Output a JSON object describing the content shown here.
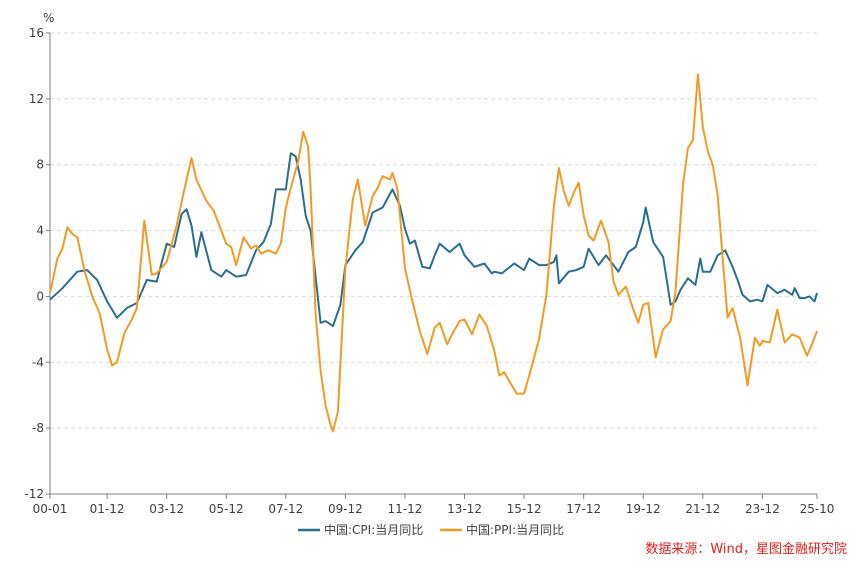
{
  "chart_data": {
    "type": "line",
    "y_unit": "%",
    "ylim": [
      -12,
      16
    ],
    "y_ticks": [
      -12,
      -8,
      -4,
      0,
      4,
      8,
      12,
      16
    ],
    "x_ticks": [
      "00-01",
      "01-12",
      "03-12",
      "05-12",
      "07-12",
      "09-12",
      "11-12",
      "13-12",
      "15-12",
      "17-12",
      "19-12",
      "21-12",
      "23-12",
      "25-10"
    ],
    "grid": "horizontal dashed",
    "legend_position": "bottom-center",
    "source": "数据来源：Wind，星图金融研究院",
    "series": [
      {
        "name": "中国:CPI:当月同比",
        "color": "#2a6f8e",
        "points": [
          [
            "00-01",
            -0.2
          ],
          [
            "00-06",
            0.5
          ],
          [
            "00-12",
            1.5
          ],
          [
            "01-04",
            1.6
          ],
          [
            "01-08",
            1.0
          ],
          [
            "01-12",
            -0.3
          ],
          [
            "02-04",
            -1.3
          ],
          [
            "02-08",
            -0.7
          ],
          [
            "02-12",
            -0.4
          ],
          [
            "03-04",
            1.0
          ],
          [
            "03-08",
            0.9
          ],
          [
            "03-12",
            3.2
          ],
          [
            "04-03",
            3.0
          ],
          [
            "04-06",
            5.0
          ],
          [
            "04-08",
            5.3
          ],
          [
            "04-10",
            4.3
          ],
          [
            "04-12",
            2.4
          ],
          [
            "05-02",
            3.9
          ],
          [
            "05-06",
            1.6
          ],
          [
            "05-10",
            1.2
          ],
          [
            "05-12",
            1.6
          ],
          [
            "06-04",
            1.2
          ],
          [
            "06-08",
            1.3
          ],
          [
            "06-12",
            2.8
          ],
          [
            "07-03",
            3.3
          ],
          [
            "07-06",
            4.4
          ],
          [
            "07-08",
            6.5
          ],
          [
            "07-12",
            6.5
          ],
          [
            "08-02",
            8.7
          ],
          [
            "08-04",
            8.5
          ],
          [
            "08-06",
            7.1
          ],
          [
            "08-08",
            4.9
          ],
          [
            "08-10",
            4.0
          ],
          [
            "08-12",
            1.2
          ],
          [
            "09-02",
            -1.6
          ],
          [
            "09-04",
            -1.5
          ],
          [
            "09-07",
            -1.8
          ],
          [
            "09-10",
            -0.5
          ],
          [
            "09-12",
            1.9
          ],
          [
            "10-04",
            2.8
          ],
          [
            "10-07",
            3.3
          ],
          [
            "10-11",
            5.1
          ],
          [
            "11-03",
            5.4
          ],
          [
            "11-07",
            6.5
          ],
          [
            "11-10",
            5.5
          ],
          [
            "11-12",
            4.1
          ],
          [
            "12-02",
            3.2
          ],
          [
            "12-04",
            3.4
          ],
          [
            "12-07",
            1.8
          ],
          [
            "12-10",
            1.7
          ],
          [
            "12-12",
            2.5
          ],
          [
            "13-02",
            3.2
          ],
          [
            "13-06",
            2.7
          ],
          [
            "13-10",
            3.2
          ],
          [
            "13-12",
            2.5
          ],
          [
            "14-04",
            1.8
          ],
          [
            "14-08",
            2.0
          ],
          [
            "14-11",
            1.4
          ],
          [
            "14-12",
            1.5
          ],
          [
            "15-03",
            1.4
          ],
          [
            "15-08",
            2.0
          ],
          [
            "15-12",
            1.6
          ],
          [
            "16-02",
            2.3
          ],
          [
            "16-06",
            1.9
          ],
          [
            "16-09",
            1.9
          ],
          [
            "16-12",
            2.1
          ],
          [
            "17-01",
            2.5
          ],
          [
            "17-02",
            0.8
          ],
          [
            "17-06",
            1.5
          ],
          [
            "17-09",
            1.6
          ],
          [
            "17-12",
            1.8
          ],
          [
            "18-02",
            2.9
          ],
          [
            "18-06",
            1.9
          ],
          [
            "18-09",
            2.5
          ],
          [
            "18-12",
            1.9
          ],
          [
            "19-02",
            1.5
          ],
          [
            "19-06",
            2.7
          ],
          [
            "19-09",
            3.0
          ],
          [
            "19-12",
            4.5
          ],
          [
            "20-01",
            5.4
          ],
          [
            "20-04",
            3.3
          ],
          [
            "20-08",
            2.4
          ],
          [
            "20-11",
            -0.5
          ],
          [
            "21-01",
            -0.3
          ],
          [
            "21-03",
            0.4
          ],
          [
            "21-06",
            1.1
          ],
          [
            "21-09",
            0.7
          ],
          [
            "21-11",
            2.3
          ],
          [
            "21-12",
            1.5
          ],
          [
            "22-03",
            1.5
          ],
          [
            "22-06",
            2.5
          ],
          [
            "22-09",
            2.8
          ],
          [
            "22-12",
            1.8
          ],
          [
            "23-02",
            1.0
          ],
          [
            "23-04",
            0.1
          ],
          [
            "23-07",
            -0.3
          ],
          [
            "23-10",
            -0.2
          ],
          [
            "23-12",
            -0.3
          ],
          [
            "24-02",
            0.7
          ],
          [
            "24-06",
            0.2
          ],
          [
            "24-09",
            0.4
          ],
          [
            "24-12",
            0.1
          ],
          [
            "25-01",
            0.5
          ],
          [
            "25-03",
            -0.1
          ],
          [
            "25-05",
            -0.1
          ],
          [
            "25-07",
            0.0
          ],
          [
            "25-09",
            -0.3
          ],
          [
            "25-10",
            0.2
          ]
        ]
      },
      {
        "name": "中国:PPI:当月同比",
        "color": "#f39a24",
        "points": [
          [
            "00-01",
            0.2
          ],
          [
            "00-04",
            2.3
          ],
          [
            "00-06",
            2.9
          ],
          [
            "00-08",
            4.2
          ],
          [
            "00-10",
            3.8
          ],
          [
            "00-12",
            3.6
          ],
          [
            "01-03",
            1.5
          ],
          [
            "01-06",
            0.0
          ],
          [
            "01-09",
            -1.0
          ],
          [
            "01-12",
            -3.2
          ],
          [
            "02-02",
            -4.2
          ],
          [
            "02-04",
            -4.0
          ],
          [
            "02-07",
            -2.2
          ],
          [
            "02-10",
            -1.4
          ],
          [
            "02-12",
            -0.7
          ],
          [
            "03-03",
            4.6
          ],
          [
            "03-06",
            1.3
          ],
          [
            "03-08",
            1.4
          ],
          [
            "03-12",
            2.1
          ],
          [
            "04-04",
            4.3
          ],
          [
            "04-07",
            6.4
          ],
          [
            "04-10",
            8.4
          ],
          [
            "04-12",
            7.1
          ],
          [
            "05-04",
            5.8
          ],
          [
            "05-07",
            5.2
          ],
          [
            "05-10",
            4.0
          ],
          [
            "05-12",
            3.2
          ],
          [
            "06-02",
            3.0
          ],
          [
            "06-04",
            1.9
          ],
          [
            "06-07",
            3.6
          ],
          [
            "06-10",
            2.9
          ],
          [
            "06-12",
            3.1
          ],
          [
            "07-02",
            2.6
          ],
          [
            "07-05",
            2.8
          ],
          [
            "07-08",
            2.6
          ],
          [
            "07-10",
            3.2
          ],
          [
            "07-12",
            5.4
          ],
          [
            "08-02",
            6.6
          ],
          [
            "08-05",
            8.2
          ],
          [
            "08-07",
            10.0
          ],
          [
            "08-09",
            9.1
          ],
          [
            "08-10",
            6.6
          ],
          [
            "08-12",
            -1.1
          ],
          [
            "09-02",
            -4.5
          ],
          [
            "09-04",
            -6.6
          ],
          [
            "09-06",
            -7.8
          ],
          [
            "09-07",
            -8.2
          ],
          [
            "09-09",
            -7.0
          ],
          [
            "09-12",
            1.7
          ],
          [
            "10-03",
            5.9
          ],
          [
            "10-05",
            7.1
          ],
          [
            "10-08",
            4.3
          ],
          [
            "10-11",
            6.1
          ],
          [
            "11-01",
            6.6
          ],
          [
            "11-03",
            7.3
          ],
          [
            "11-06",
            7.1
          ],
          [
            "11-07",
            7.5
          ],
          [
            "11-09",
            6.5
          ],
          [
            "11-12",
            1.7
          ],
          [
            "12-03",
            -0.3
          ],
          [
            "12-06",
            -2.1
          ],
          [
            "12-09",
            -3.5
          ],
          [
            "12-12",
            -1.9
          ],
          [
            "13-02",
            -1.6
          ],
          [
            "13-05",
            -2.9
          ],
          [
            "13-07",
            -2.3
          ],
          [
            "13-10",
            -1.5
          ],
          [
            "13-12",
            -1.4
          ],
          [
            "14-03",
            -2.3
          ],
          [
            "14-06",
            -1.1
          ],
          [
            "14-09",
            -1.8
          ],
          [
            "14-12",
            -3.3
          ],
          [
            "15-02",
            -4.8
          ],
          [
            "15-04",
            -4.6
          ],
          [
            "15-07",
            -5.4
          ],
          [
            "15-09",
            -5.9
          ],
          [
            "15-12",
            -5.9
          ],
          [
            "16-03",
            -4.3
          ],
          [
            "16-06",
            -2.6
          ],
          [
            "16-09",
            0.1
          ],
          [
            "16-12",
            5.5
          ],
          [
            "17-02",
            7.8
          ],
          [
            "17-04",
            6.4
          ],
          [
            "17-06",
            5.5
          ],
          [
            "17-08",
            6.3
          ],
          [
            "17-10",
            6.9
          ],
          [
            "17-12",
            4.9
          ],
          [
            "18-02",
            3.7
          ],
          [
            "18-04",
            3.4
          ],
          [
            "18-07",
            4.6
          ],
          [
            "18-10",
            3.3
          ],
          [
            "18-12",
            0.9
          ],
          [
            "19-02",
            0.1
          ],
          [
            "19-05",
            0.6
          ],
          [
            "19-08",
            -0.8
          ],
          [
            "19-10",
            -1.6
          ],
          [
            "19-12",
            -0.5
          ],
          [
            "20-02",
            -0.4
          ],
          [
            "20-05",
            -3.7
          ],
          [
            "20-08",
            -2.0
          ],
          [
            "20-11",
            -1.5
          ],
          [
            "21-01",
            0.3
          ],
          [
            "21-04",
            6.8
          ],
          [
            "21-06",
            9.0
          ],
          [
            "21-08",
            9.5
          ],
          [
            "21-10",
            13.5
          ],
          [
            "21-12",
            10.3
          ],
          [
            "22-02",
            8.8
          ],
          [
            "22-04",
            8.0
          ],
          [
            "22-06",
            6.1
          ],
          [
            "22-08",
            2.3
          ],
          [
            "22-10",
            -1.3
          ],
          [
            "22-12",
            -0.7
          ],
          [
            "23-03",
            -2.5
          ],
          [
            "23-06",
            -5.4
          ],
          [
            "23-09",
            -2.5
          ],
          [
            "23-11",
            -3.0
          ],
          [
            "23-12",
            -2.7
          ],
          [
            "24-03",
            -2.8
          ],
          [
            "24-06",
            -0.8
          ],
          [
            "24-09",
            -2.8
          ],
          [
            "24-12",
            -2.3
          ],
          [
            "25-03",
            -2.5
          ],
          [
            "25-06",
            -3.6
          ],
          [
            "25-08",
            -2.9
          ],
          [
            "25-10",
            -2.1
          ]
        ]
      }
    ]
  }
}
